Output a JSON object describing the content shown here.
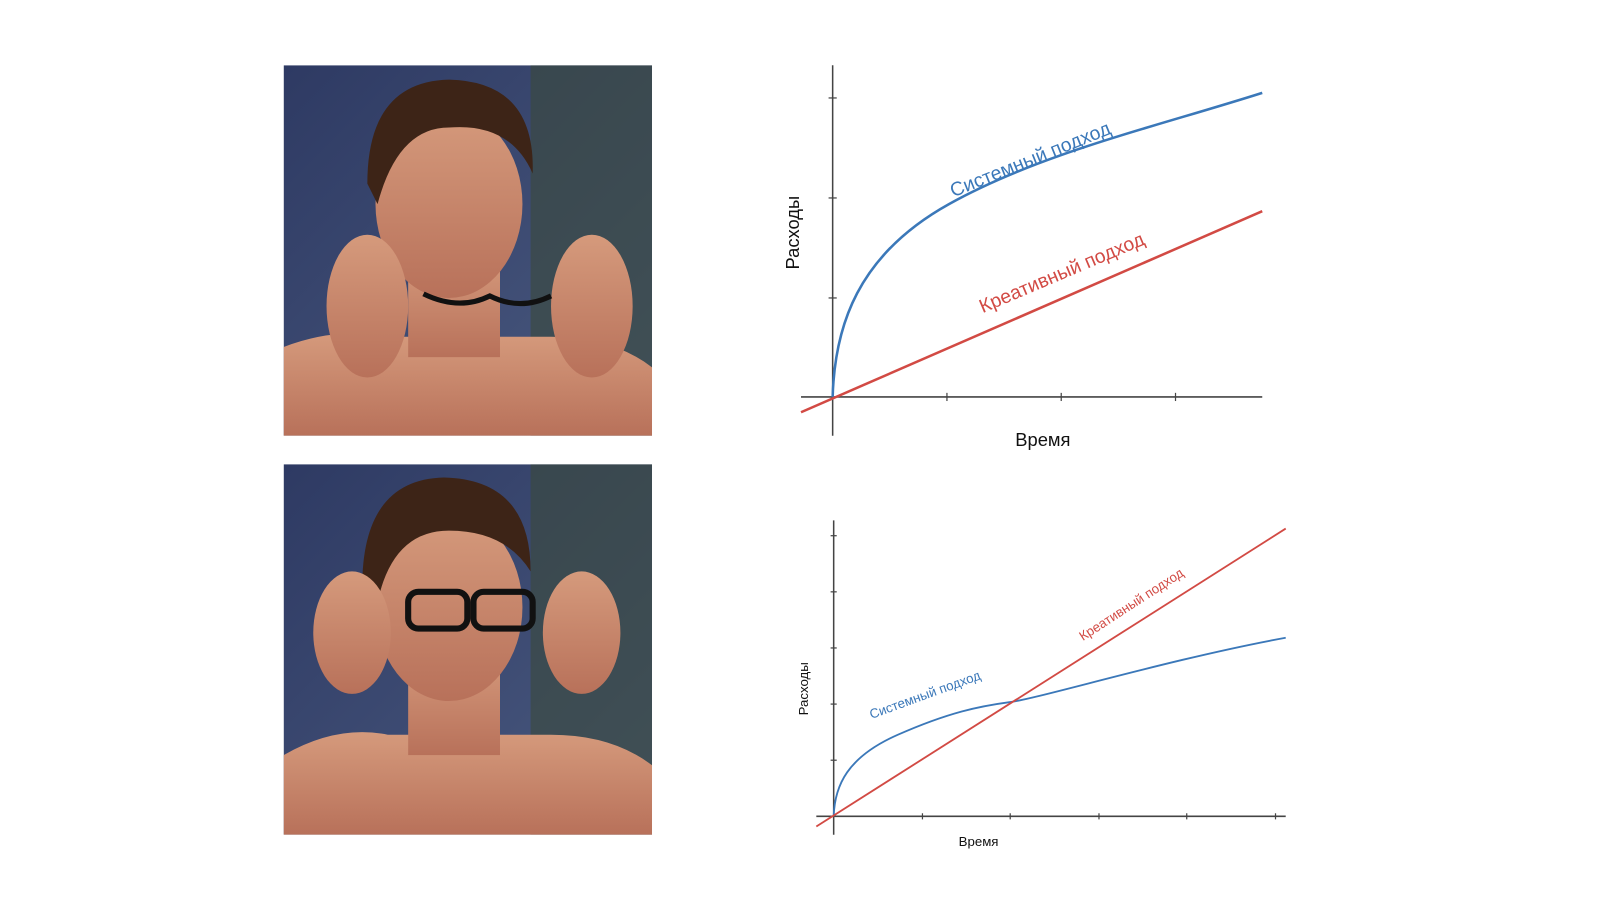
{
  "panels": [
    {
      "y_label": "Расходы",
      "x_label": "Время",
      "series": [
        "Системный подход",
        "Креативный подход"
      ]
    },
    {
      "y_label": "Расходы",
      "x_label": "Время",
      "series": [
        "Системный подход",
        "Креативный подход"
      ]
    }
  ]
}
